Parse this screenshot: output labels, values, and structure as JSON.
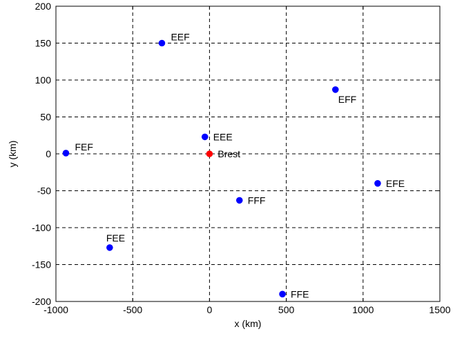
{
  "chart_data": {
    "type": "scatter",
    "title": "",
    "xlabel": "x (km)",
    "ylabel": "y (km)",
    "xlim": [
      -1000,
      1500
    ],
    "ylim": [
      -200,
      200
    ],
    "xticks": [
      -1000,
      -500,
      0,
      500,
      1000,
      1500
    ],
    "yticks": [
      -200,
      -150,
      -100,
      -50,
      0,
      50,
      100,
      150,
      200
    ],
    "xtick_labels": [
      "-1000",
      "-500",
      "0",
      "500",
      "1000",
      "1500"
    ],
    "ytick_labels": [
      "-200",
      "-150",
      "-100",
      "-50",
      "0",
      "50",
      "100",
      "150",
      "200"
    ],
    "grid": true,
    "colors": {
      "points": "#0000ff",
      "reference": "#ff0000"
    },
    "points": [
      {
        "label": "EEF",
        "x": -310,
        "y": 150,
        "color": "#0000ff",
        "label_pos": "above-right"
      },
      {
        "label": "EFF",
        "x": 820,
        "y": 87,
        "color": "#0000ff",
        "label_pos": "below-right"
      },
      {
        "label": "EEE",
        "x": -30,
        "y": 23,
        "color": "#0000ff",
        "label_pos": "right"
      },
      {
        "label": "Brest",
        "x": 0,
        "y": 0,
        "color": "#ff0000",
        "label_pos": "right"
      },
      {
        "label": "FEF",
        "x": -935,
        "y": 1,
        "color": "#0000ff",
        "label_pos": "above-right"
      },
      {
        "label": "EFE",
        "x": 1095,
        "y": -40,
        "color": "#0000ff",
        "label_pos": "right"
      },
      {
        "label": "FFF",
        "x": 195,
        "y": -63,
        "color": "#0000ff",
        "label_pos": "right"
      },
      {
        "label": "FEE",
        "x": -650,
        "y": -127,
        "color": "#0000ff",
        "label_pos": "above"
      },
      {
        "label": "FFE",
        "x": 475,
        "y": -190,
        "color": "#0000ff",
        "label_pos": "right"
      }
    ]
  }
}
